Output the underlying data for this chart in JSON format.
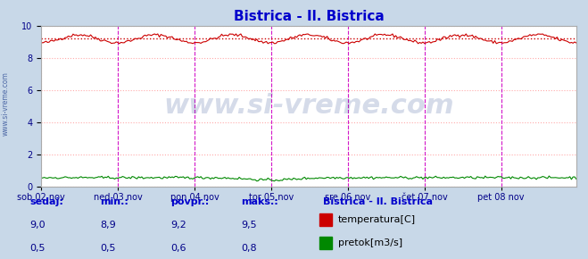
{
  "title": "Bistrica - Il. Bistrica",
  "title_color": "#0000cc",
  "fig_bg_color": "#c8d8e8",
  "plot_bg_color": "#ffffff",
  "ylim": [
    0,
    10
  ],
  "yticks": [
    0,
    2,
    4,
    6,
    8,
    10
  ],
  "grid_color": "#ffaaaa",
  "temp_color": "#cc0000",
  "flow_color": "#008800",
  "avg_line_color": "#cc0000",
  "vline_color_magenta": "#cc00cc",
  "watermark": "www.si-vreme.com",
  "watermark_color": "#1a3a8a",
  "x_day_labels": [
    "sob 02 nov",
    "ned 03 nov",
    "pon 04 nov",
    "tor 05 nov",
    "sre 06 nov",
    "čet 07 nov",
    "pet 08 nov"
  ],
  "x_day_positions": [
    0,
    48,
    96,
    144,
    192,
    240,
    288
  ],
  "n_points": 336,
  "temp_avg": 9.2,
  "legend_title": "Bistrica - Il. Bistrica",
  "legend_labels": [
    "temperatura[C]",
    "pretok[m3/s]"
  ],
  "legend_colors": [
    "#cc0000",
    "#008800"
  ],
  "table_labels": [
    "sedaj:",
    "min.:",
    "povpr.:",
    "maks.:"
  ],
  "table_temp": [
    "9,0",
    "8,9",
    "9,2",
    "9,5"
  ],
  "table_flow": [
    "0,5",
    "0,5",
    "0,6",
    "0,8"
  ],
  "sidebar_text": "www.si-vreme.com",
  "sidebar_color": "#1a3a8a"
}
